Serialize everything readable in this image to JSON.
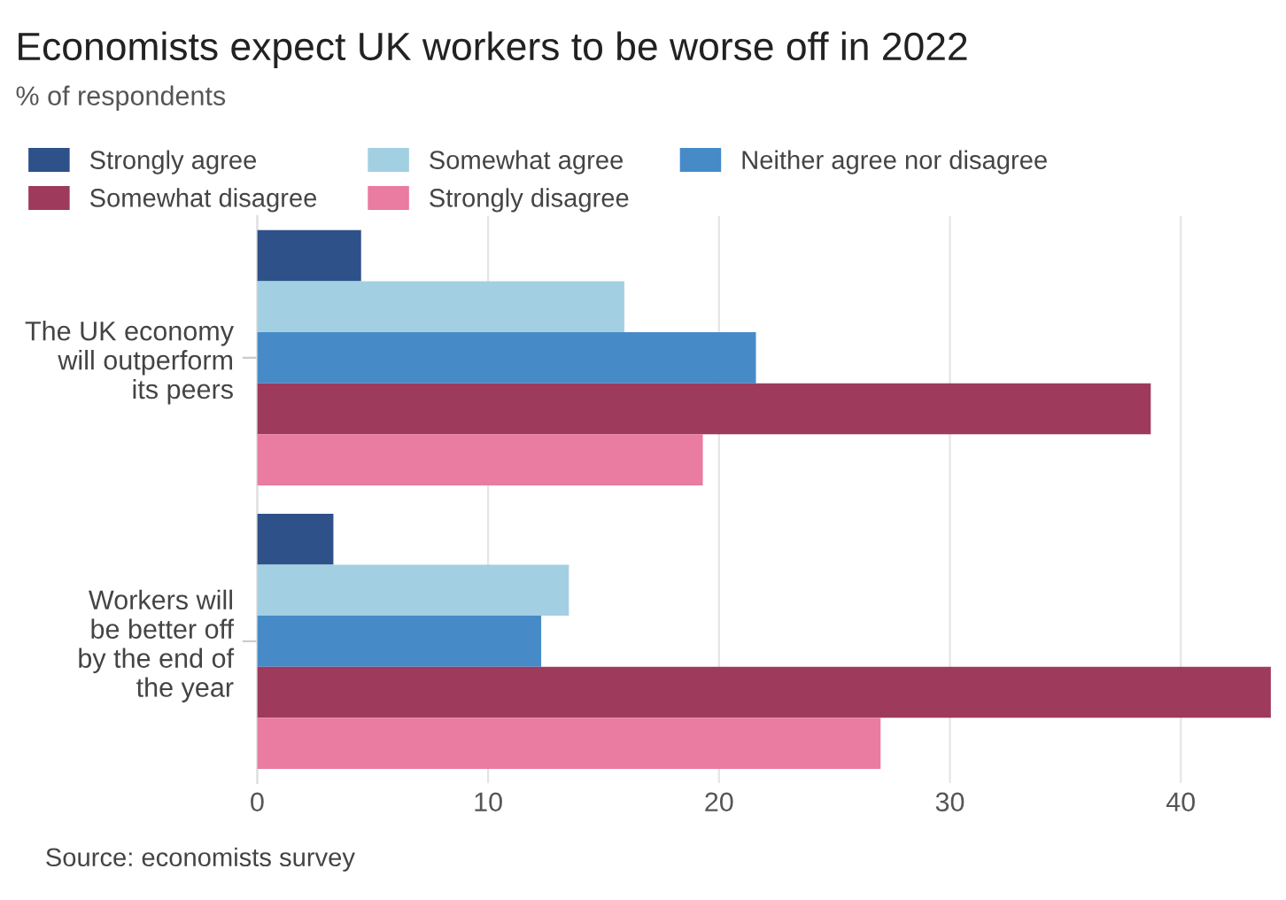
{
  "chart_data": {
    "type": "bar",
    "orientation": "horizontal",
    "title": "Economists expect UK workers to be worse off in 2022",
    "subtitle": "% of respondents",
    "categories": [
      "The UK economy\nwill outperform\nits peers",
      "Workers will\nbe better off\nby the end of\nthe year"
    ],
    "series": [
      {
        "name": "Strongly agree",
        "color": "#2e5189",
        "values": [
          4.5,
          3.3
        ]
      },
      {
        "name": "Somewhat agree",
        "color": "#a3cfe2",
        "values": [
          15.9,
          13.5
        ]
      },
      {
        "name": "Neither agree nor disagree",
        "color": "#468bc8",
        "values": [
          21.6,
          12.3
        ]
      },
      {
        "name": "Somewhat disagree",
        "color": "#9e3a5b",
        "values": [
          38.7,
          43.9
        ]
      },
      {
        "name": "Strongly disagree",
        "color": "#ea7ba1",
        "values": [
          19.3,
          27.0
        ]
      }
    ],
    "xlim": [
      0,
      44
    ],
    "xticks": [
      0,
      10,
      20,
      30,
      40
    ],
    "grid": "x",
    "legend": "top",
    "annotations": [
      "Source: economists survey"
    ]
  }
}
